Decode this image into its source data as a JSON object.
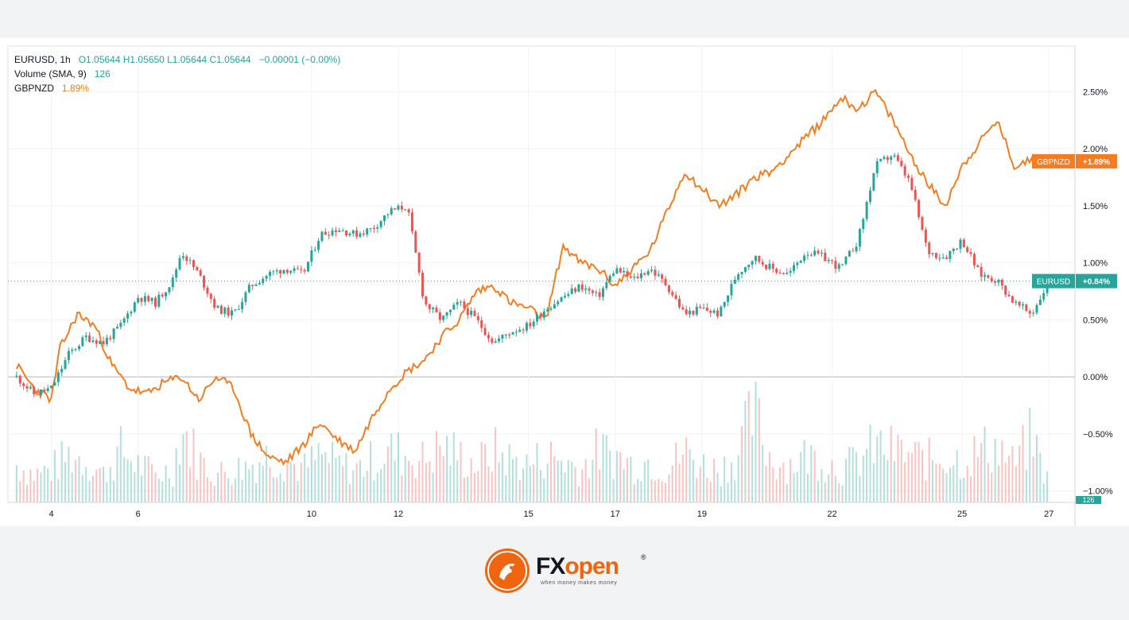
{
  "legend": {
    "symbol": "EURUSD, 1h",
    "ohlc": "O1.05644  H1.05650  L1.05644  C1.05644",
    "change": "−0.00001 (−0.00%)",
    "volume_label": "Volume (SMA, 9)",
    "volume_value": "126",
    "compare_label": "GBPNZD",
    "compare_value": "1.89%"
  },
  "colors": {
    "up": "#26a69a",
    "down": "#ef5350",
    "compare": "#f57c1f",
    "grid": "#f0f3fa"
  },
  "chart_data": {
    "type": "line",
    "y_unit": "percent change",
    "ylim": [
      -1.1,
      2.9
    ],
    "x_tick_labels": [
      "4",
      "6",
      "10",
      "12",
      "15",
      "17",
      "19",
      "22",
      "25",
      "27"
    ],
    "y_tick_labels": [
      "2.50%",
      "2.00%",
      "1.50%",
      "1.00%",
      "0.50%",
      "0.00%",
      "−0.50%",
      "−1.00%"
    ],
    "y_ticks": [
      2.5,
      2.0,
      1.5,
      1.0,
      0.5,
      0.0,
      -0.5,
      -1.0
    ],
    "series": [
      {
        "name": "EURUSD",
        "style": "candles",
        "last_label": "+0.84%",
        "last_value": 0.84,
        "x": [
          3.2,
          3.6,
          4.0,
          4.4,
          4.8,
          5.2,
          5.6,
          6.0,
          6.4,
          6.8,
          7.0,
          7.4,
          7.8,
          8.2,
          8.6,
          9.0,
          9.4,
          9.8,
          10.2,
          10.6,
          11.0,
          11.4,
          11.8,
          12.2,
          12.6,
          13.0,
          13.4,
          13.8,
          14.2,
          14.6,
          15.0,
          15.4,
          15.8,
          16.2,
          16.6,
          17.0,
          17.4,
          17.8,
          18.2,
          18.6,
          19.0,
          19.4,
          19.8,
          20.2,
          20.6,
          21.0,
          21.4,
          21.8,
          22.2,
          22.6,
          23.0,
          23.4,
          23.8,
          24.2,
          24.6,
          25.0,
          25.4,
          25.8,
          26.2,
          26.6,
          27.0
        ],
        "values": [
          0.0,
          -0.15,
          -0.1,
          0.2,
          0.35,
          0.3,
          0.45,
          0.7,
          0.65,
          0.85,
          1.1,
          0.9,
          0.6,
          0.55,
          0.8,
          0.9,
          0.95,
          0.9,
          1.25,
          1.3,
          1.25,
          1.3,
          1.45,
          1.5,
          0.65,
          0.5,
          0.65,
          0.5,
          0.3,
          0.4,
          0.45,
          0.6,
          0.7,
          0.8,
          0.7,
          0.95,
          0.85,
          0.95,
          0.8,
          0.55,
          0.6,
          0.55,
          0.9,
          1.05,
          0.95,
          0.9,
          1.1,
          1.05,
          0.95,
          1.2,
          1.85,
          1.95,
          1.7,
          1.1,
          1.05,
          1.2,
          0.9,
          0.85,
          0.65,
          0.55,
          0.84
        ]
      },
      {
        "name": "GBPNZD",
        "style": "line",
        "last_label": "+1.89%",
        "last_value": 1.89,
        "x": [
          3.2,
          3.6,
          4.0,
          4.2,
          4.6,
          5.0,
          5.4,
          5.8,
          6.2,
          6.6,
          7.0,
          7.4,
          7.8,
          8.2,
          8.6,
          9.0,
          9.4,
          9.8,
          10.2,
          10.6,
          11.0,
          11.4,
          11.8,
          12.2,
          12.6,
          13.0,
          13.4,
          13.8,
          14.2,
          14.6,
          15.0,
          15.4,
          15.8,
          16.2,
          16.6,
          17.0,
          17.4,
          17.8,
          18.2,
          18.6,
          19.0,
          19.4,
          19.8,
          20.2,
          20.6,
          21.0,
          21.4,
          21.8,
          22.2,
          22.6,
          23.0,
          23.4,
          23.8,
          24.2,
          24.6,
          25.0,
          25.4,
          25.8,
          26.2,
          26.6,
          27.0
        ],
        "values": [
          0.1,
          -0.1,
          -0.2,
          0.25,
          0.55,
          0.45,
          0.1,
          -0.1,
          -0.15,
          -0.05,
          0.0,
          -0.2,
          0.0,
          -0.1,
          -0.5,
          -0.7,
          -0.75,
          -0.6,
          -0.4,
          -0.55,
          -0.65,
          -0.35,
          -0.1,
          0.05,
          0.15,
          0.35,
          0.5,
          0.75,
          0.8,
          0.65,
          0.6,
          0.5,
          1.15,
          1.0,
          0.95,
          0.8,
          0.95,
          1.1,
          1.45,
          1.8,
          1.65,
          1.5,
          1.6,
          1.75,
          1.8,
          1.95,
          2.1,
          2.25,
          2.45,
          2.35,
          2.5,
          2.25,
          1.95,
          1.7,
          1.5,
          1.85,
          2.05,
          2.25,
          1.85,
          1.9,
          1.89
        ]
      },
      {
        "name": "Volume (SMA, 9)",
        "style": "volume",
        "last_label": "126",
        "x": [
          3.2,
          3.6,
          4.0,
          4.4,
          4.8,
          5.2,
          5.6,
          6.0,
          6.4,
          6.8,
          7.0,
          7.4,
          7.8,
          8.2,
          8.6,
          9.0,
          9.4,
          9.8,
          10.2,
          10.6,
          11.0,
          11.4,
          11.8,
          12.2,
          12.6,
          13.0,
          13.4,
          13.8,
          14.2,
          14.6,
          15.0,
          15.4,
          15.8,
          16.2,
          16.6,
          17.0,
          17.4,
          17.8,
          18.2,
          18.6,
          19.0,
          19.4,
          19.8,
          20.2,
          20.6,
          21.0,
          21.4,
          21.8,
          22.2,
          22.6,
          23.0,
          23.4,
          23.8,
          24.2,
          24.6,
          25.0,
          25.4,
          25.8,
          26.2,
          26.6,
          27.0
        ],
        "values": [
          0.4,
          0.3,
          0.35,
          0.5,
          0.45,
          0.3,
          0.55,
          0.4,
          0.3,
          0.35,
          0.8,
          0.45,
          0.3,
          0.35,
          0.4,
          0.5,
          0.45,
          0.35,
          0.5,
          0.4,
          0.35,
          0.45,
          0.55,
          0.5,
          0.45,
          0.6,
          0.5,
          0.4,
          0.55,
          0.45,
          0.4,
          0.5,
          0.45,
          0.35,
          0.55,
          0.5,
          0.4,
          0.45,
          0.35,
          0.55,
          0.4,
          0.35,
          0.5,
          0.95,
          0.45,
          0.4,
          0.5,
          0.45,
          0.35,
          0.45,
          0.6,
          0.55,
          0.5,
          0.45,
          0.5,
          0.45,
          0.55,
          0.6,
          0.4,
          0.7,
          0.2
        ]
      }
    ]
  },
  "logo": {
    "fx": "FX",
    "open": "open",
    "reg": "®",
    "tagline": "when money makes money"
  }
}
